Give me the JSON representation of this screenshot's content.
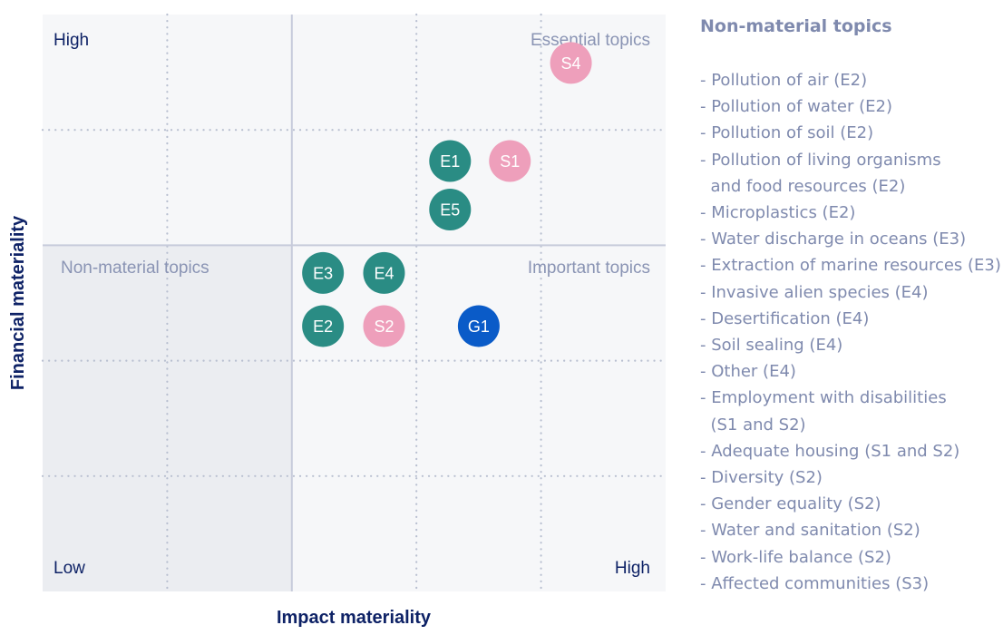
{
  "chart_data": {
    "type": "scatter",
    "title": "",
    "xlabel": "Impact materiality",
    "ylabel": "Financial materiality",
    "xlim": [
      0,
      5
    ],
    "ylim": [
      0,
      5
    ],
    "thresholds": {
      "x": 2,
      "y": 3
    },
    "axis_ends": {
      "high_y": "High",
      "low": "Low",
      "high_x": "High"
    },
    "quadrants": {
      "essential": "Essential topics",
      "non_material": "Non-material topics",
      "important": "Important topics"
    },
    "colors": {
      "environment": "#2a8c84",
      "social": "#ee9fbb",
      "governance": "#0a5bc8",
      "label": "#8a94b4",
      "axis_title": "#0e2266",
      "shade": "#ebedf1",
      "grid": "#b8bfd0",
      "threshold": "#c7cbdb"
    },
    "points": [
      {
        "label": "S4",
        "group": "social",
        "x": 4.24,
        "y": 4.58
      },
      {
        "label": "E1",
        "group": "environment",
        "x": 3.27,
        "y": 3.73
      },
      {
        "label": "S1",
        "group": "social",
        "x": 3.75,
        "y": 3.73
      },
      {
        "label": "E5",
        "group": "environment",
        "x": 3.27,
        "y": 3.31
      },
      {
        "label": "E3",
        "group": "environment",
        "x": 2.25,
        "y": 2.76
      },
      {
        "label": "E4",
        "group": "environment",
        "x": 2.74,
        "y": 2.76
      },
      {
        "label": "E2",
        "group": "environment",
        "x": 2.25,
        "y": 2.3
      },
      {
        "label": "S2",
        "group": "social",
        "x": 2.74,
        "y": 2.3
      },
      {
        "label": "G1",
        "group": "governance",
        "x": 3.5,
        "y": 2.3
      }
    ]
  },
  "legend": {
    "title": "Non-material topics",
    "items": [
      "- Pollution of air (E2)",
      "- Pollution of water (E2)",
      "- Pollution of soil (E2)",
      "- Pollution of living organisms\n  and food resources (E2)",
      "- Microplastics (E2)",
      "- Water discharge in oceans (E3)",
      "- Extraction of marine resources (E3)",
      "- Invasive alien species (E4)",
      "- Desertification (E4)",
      "- Soil sealing (E4)",
      "- Other (E4)",
      "- Employment with disabilities\n  (S1 and S2)",
      "- Adequate housing (S1 and S2)",
      "- Diversity (S2)",
      "- Gender equality (S2)",
      "- Water and sanitation (S2)",
      "- Work-life balance (S2)",
      "- Affected communities (S3)"
    ]
  }
}
